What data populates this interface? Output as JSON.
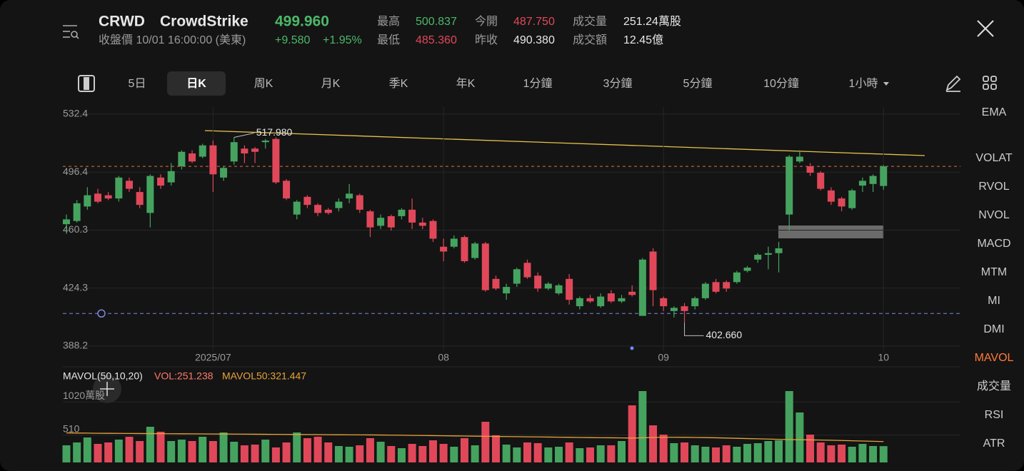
{
  "header": {
    "symbol": "CRWD",
    "name": "CrowdStrike",
    "price": "499.960",
    "status": "收盤價 10/01 16:00:00 (美東)",
    "change": "+9.580",
    "change_pct": "+1.95%",
    "stats": [
      {
        "label": "最高",
        "value": "500.837"
      },
      {
        "label": "今開",
        "value": "487.750"
      },
      {
        "label": "成交量",
        "value": "251.24萬股"
      },
      {
        "label": "最低",
        "value": "485.360"
      },
      {
        "label": "昨收",
        "value": "490.380"
      },
      {
        "label": "成交額",
        "value": "12.45億"
      }
    ]
  },
  "tabs": [
    "5日",
    "日K",
    "周K",
    "月K",
    "季K",
    "年K",
    "1分鐘",
    "3分鐘",
    "5分鐘",
    "10分鐘",
    "1小時"
  ],
  "indicators": [
    "EMA",
    "VOLAT",
    "RVOL",
    "NVOL",
    "MACD",
    "MTM",
    "MI",
    "DMI",
    "MAVOL",
    "成交量",
    "RSI",
    "ATR"
  ],
  "chart_data": [
    {
      "type": "candlestick",
      "up_color": "#45a35f",
      "down_color": "#e0485a",
      "categories": [
        null,
        null,
        null,
        null,
        null,
        null,
        null,
        null,
        null,
        null,
        null,
        null,
        null,
        null,
        "2025/07",
        null,
        null,
        null,
        null,
        null,
        null,
        null,
        null,
        null,
        null,
        null,
        null,
        null,
        null,
        null,
        null,
        null,
        null,
        null,
        null,
        null,
        "08",
        null,
        null,
        null,
        null,
        null,
        null,
        null,
        null,
        null,
        null,
        null,
        null,
        null,
        null,
        null,
        null,
        null,
        null,
        null,
        null,
        "09",
        null,
        null,
        null,
        null,
        null,
        null,
        null,
        null,
        null,
        null,
        null,
        null,
        null,
        null,
        null,
        null,
        null,
        null,
        null,
        null,
        "10"
      ],
      "ohlc": [
        [
          464,
          470,
          458,
          467
        ],
        [
          466,
          479,
          465,
          477
        ],
        [
          475,
          487,
          473,
          482
        ],
        [
          483,
          486,
          477,
          478
        ],
        [
          482,
          484,
          479,
          480
        ],
        [
          480,
          494,
          478,
          493
        ],
        [
          491,
          493,
          484,
          486
        ],
        [
          484,
          487,
          474,
          476
        ],
        [
          471,
          495,
          462,
          494
        ],
        [
          493,
          495,
          486,
          488
        ],
        [
          490,
          502,
          488,
          497
        ],
        [
          500,
          510,
          498,
          509
        ],
        [
          508,
          510,
          502,
          503
        ],
        [
          506,
          514,
          505,
          513
        ],
        [
          513,
          516,
          484,
          495
        ],
        [
          493,
          500,
          491,
          499
        ],
        [
          503,
          517.98,
          501,
          515
        ],
        [
          511,
          513,
          502,
          508
        ],
        [
          511,
          512,
          502,
          509
        ],
        [
          515,
          517,
          511,
          516
        ],
        [
          517,
          518,
          489,
          490
        ],
        [
          491,
          492,
          479,
          480
        ],
        [
          470,
          479,
          467,
          478
        ],
        [
          481,
          482,
          474,
          476
        ],
        [
          476,
          477,
          469,
          471
        ],
        [
          473,
          474,
          470,
          471
        ],
        [
          474,
          480,
          472,
          478
        ],
        [
          480,
          489,
          477,
          483
        ],
        [
          482,
          483,
          471,
          473
        ],
        [
          472,
          473,
          456,
          462
        ],
        [
          463,
          470,
          461,
          468
        ],
        [
          469,
          470,
          460,
          462
        ],
        [
          469,
          474,
          467,
          473
        ],
        [
          473,
          480,
          461,
          465
        ],
        [
          465,
          468,
          461,
          463
        ],
        [
          466,
          467,
          453,
          455
        ],
        [
          450,
          455,
          441,
          447
        ],
        [
          450,
          457,
          449,
          455
        ],
        [
          456,
          457,
          440,
          441
        ],
        [
          443,
          453,
          442,
          452
        ],
        [
          452,
          453,
          422,
          423
        ],
        [
          430,
          432,
          423,
          424
        ],
        [
          421,
          427,
          417,
          425
        ],
        [
          427,
          437,
          425,
          436
        ],
        [
          440,
          442,
          430,
          431
        ],
        [
          432,
          434,
          422,
          424
        ],
        [
          424,
          428,
          423,
          427
        ],
        [
          421,
          427,
          420,
          426
        ],
        [
          430,
          433,
          414,
          417
        ],
        [
          413,
          419,
          411,
          418
        ],
        [
          418,
          420,
          415,
          416
        ],
        [
          413,
          421,
          412,
          419
        ],
        [
          421,
          423,
          415,
          416
        ],
        [
          416,
          420,
          415,
          418
        ],
        [
          422,
          426,
          419,
          420
        ],
        [
          407,
          443,
          407,
          442
        ],
        [
          447,
          449,
          413,
          423
        ],
        [
          418,
          419,
          410,
          413
        ],
        [
          410,
          413,
          406,
          412
        ],
        [
          413,
          415,
          402.66,
          410
        ],
        [
          413,
          419,
          411,
          418
        ],
        [
          418,
          428,
          417,
          427
        ],
        [
          428,
          430,
          421,
          422
        ],
        [
          428,
          429,
          422,
          424
        ],
        [
          428,
          435,
          427,
          434
        ],
        [
          435,
          438,
          434,
          437
        ],
        [
          442,
          446,
          440,
          445
        ],
        [
          445,
          450,
          436,
          446
        ],
        [
          446,
          453,
          434,
          449
        ],
        [
          470,
          507,
          460,
          506
        ],
        [
          503,
          510,
          502,
          506
        ],
        [
          500,
          502,
          494,
          496
        ],
        [
          496,
          497,
          485,
          486
        ],
        [
          485,
          487,
          476,
          478
        ],
        [
          480,
          481,
          472,
          475
        ],
        [
          474,
          486,
          473,
          485
        ],
        [
          488,
          493,
          484,
          491
        ],
        [
          489,
          495,
          484,
          494
        ],
        [
          487.75,
          500.837,
          485.36,
          499.96
        ]
      ],
      "ylim": [
        388.2,
        532.4
      ],
      "yticks": [
        388.2,
        424.3,
        460.3,
        496.4,
        532.4
      ],
      "grid": true,
      "alert_price": 408.5,
      "annotations": [
        {
          "value": 517.98,
          "label": "517.980"
        },
        {
          "value": 402.66,
          "label": "402.660"
        }
      ]
    },
    {
      "type": "bar",
      "legend": {
        "name": "MAVOL(50,10,20)",
        "vol": "VOL:251.238",
        "mavol50": "MAVOL50:321.447"
      },
      "volumes": [
        264,
        308,
        385,
        286,
        308,
        352,
        396,
        330,
        550,
        473,
        330,
        352,
        330,
        396,
        330,
        462,
        319,
        264,
        275,
        352,
        231,
        308,
        462,
        374,
        396,
        308,
        253,
        242,
        264,
        374,
        319,
        253,
        220,
        286,
        253,
        341,
        286,
        242,
        374,
        264,
        627,
        418,
        275,
        231,
        308,
        297,
        231,
        242,
        308,
        220,
        231,
        264,
        264,
        330,
        880,
        1100,
        572,
        429,
        297,
        308,
        264,
        242,
        231,
        264,
        242,
        286,
        297,
        330,
        341,
        1100,
        770,
        429,
        308,
        264,
        275,
        242,
        286,
        253,
        251.238
      ],
      "mavol50": [
        455,
        453,
        452,
        450,
        449,
        448,
        447,
        446,
        445,
        444,
        443,
        442,
        441,
        440,
        439,
        438,
        437,
        436,
        435,
        434,
        433,
        432,
        431,
        430,
        429,
        428,
        427,
        426,
        425,
        424,
        423,
        421,
        419,
        417,
        415,
        413,
        411,
        409,
        407,
        405,
        403,
        401,
        399,
        397,
        395,
        393,
        391,
        389,
        387,
        385,
        383,
        381,
        380,
        378,
        376,
        380,
        385,
        388,
        388,
        387,
        385,
        383,
        380,
        376,
        372,
        368,
        364,
        360,
        356,
        352,
        350,
        348,
        345,
        342,
        338,
        334,
        330,
        326,
        321.447
      ],
      "mavol_color": "#e8a33a",
      "ylim": [
        0,
        1100
      ],
      "yticks": [
        510,
        {
          "value": 1020,
          "label": "1020萬股"
        }
      ]
    }
  ]
}
